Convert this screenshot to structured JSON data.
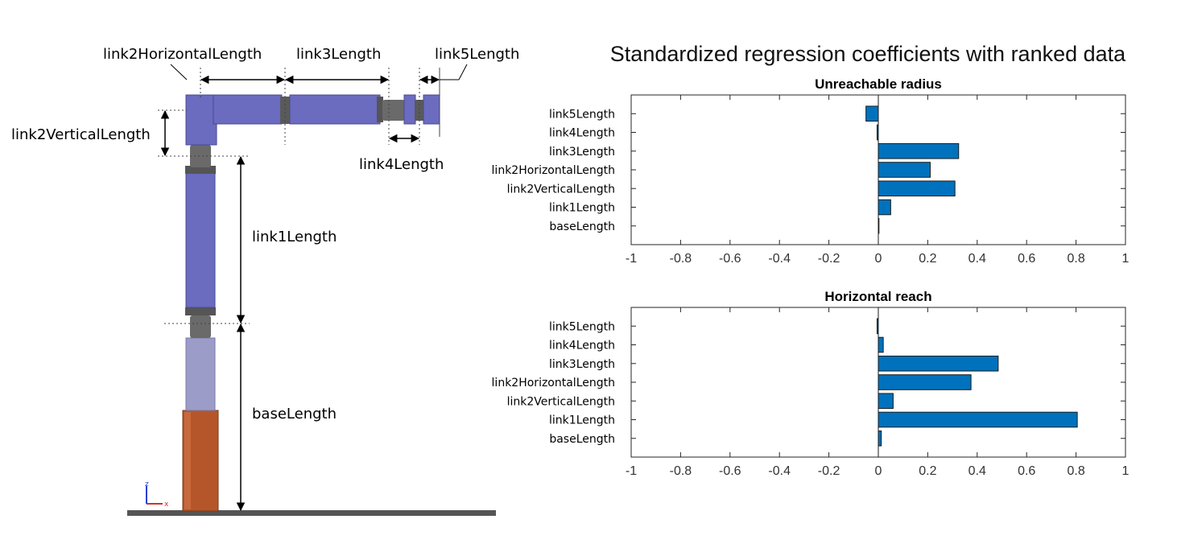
{
  "diagram": {
    "labels": {
      "link2HorizontalLength": "link2HorizontalLength",
      "link3Length": "link3Length",
      "link5Length": "link5Length",
      "link2VerticalLength": "link2VerticalLength",
      "link4Length": "link4Length",
      "link1Length": "link1Length",
      "baseLength": "baseLength"
    },
    "triad": {
      "z": "z",
      "x": "x"
    },
    "colors": {
      "link": "#6b6bbf",
      "joint": "#5a5a5a",
      "base": "#9c9cc8",
      "pedestal": "#b5562a",
      "ground": "#555555"
    }
  },
  "chart_data": {
    "suptitle": "Standardized regression coefficients with ranked data",
    "bar_color": "#0072BD",
    "charts": [
      {
        "type": "bar",
        "orientation": "horizontal",
        "title": "Unreachable radius",
        "categories": [
          "link5Length",
          "link4Length",
          "link3Length",
          "link2HorizontalLength",
          "link2VerticalLength",
          "link1Length",
          "baseLength"
        ],
        "values": [
          -0.05,
          -0.005,
          0.325,
          0.21,
          0.31,
          0.05,
          0.0
        ],
        "xlim": [
          -1,
          1
        ],
        "xticks": [
          "-1",
          "-0.8",
          "-0.6",
          "-0.4",
          "-0.2",
          "0",
          "0.2",
          "0.4",
          "0.6",
          "0.8",
          "1"
        ]
      },
      {
        "type": "bar",
        "orientation": "horizontal",
        "title": "Horizontal reach",
        "categories": [
          "link5Length",
          "link4Length",
          "link3Length",
          "link2HorizontalLength",
          "link2VerticalLength",
          "link1Length",
          "baseLength"
        ],
        "values": [
          -0.005,
          0.02,
          0.485,
          0.375,
          0.06,
          0.805,
          0.012
        ],
        "xlim": [
          -1,
          1
        ],
        "xticks": [
          "-1",
          "-0.8",
          "-0.6",
          "-0.4",
          "-0.2",
          "0",
          "0.2",
          "0.4",
          "0.6",
          "0.8",
          "1"
        ]
      }
    ]
  }
}
